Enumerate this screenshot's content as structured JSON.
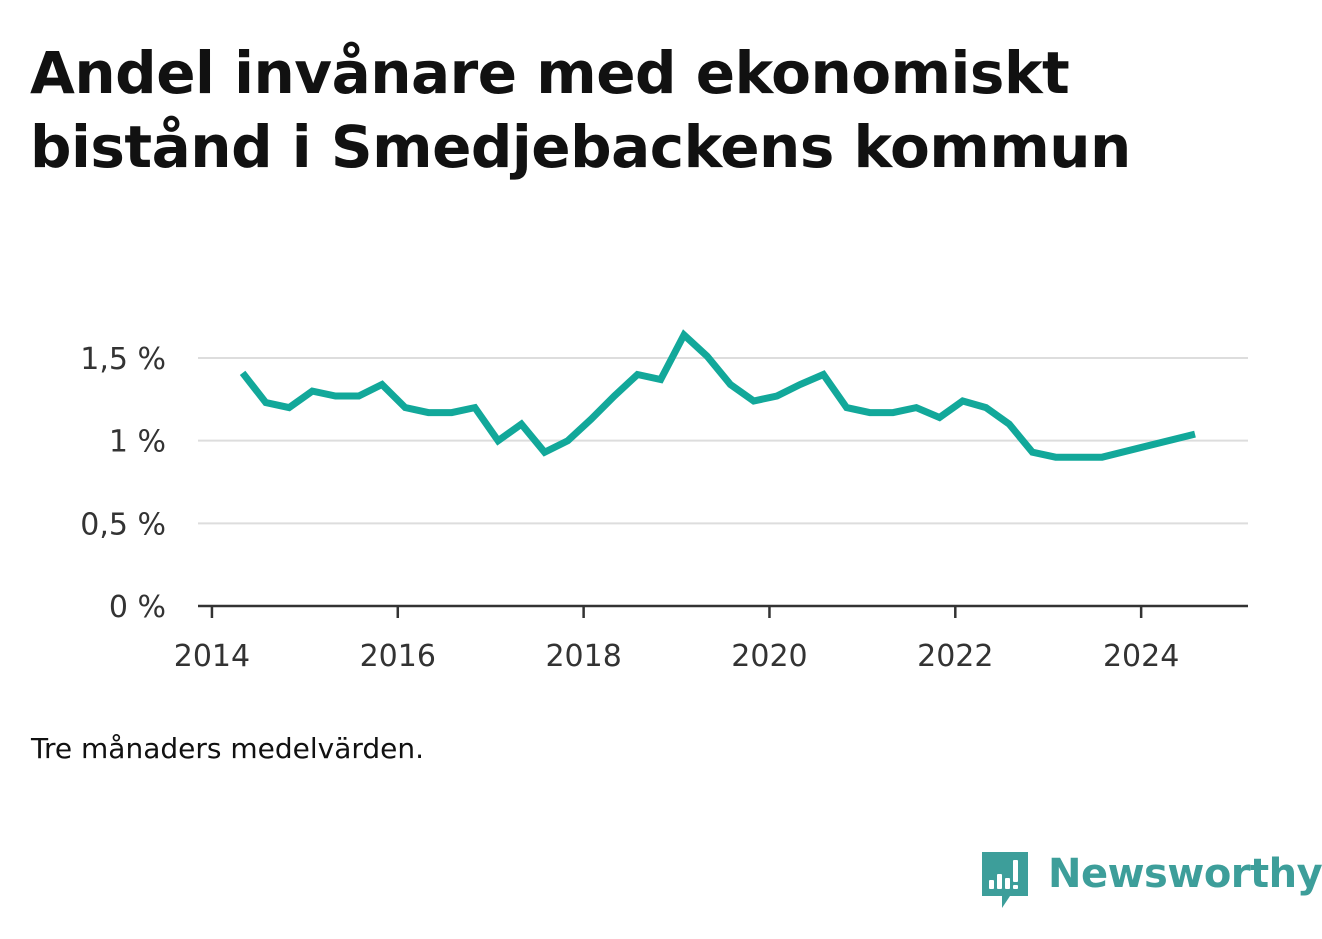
{
  "title": "Andel invånare med ekonomiskt bistånd i Smedjebackens kommun",
  "note": "Tre månaders medelvärden.",
  "brand": {
    "name": "Newsworthy",
    "icon": "newsworthy-logo-icon",
    "color": "#3d9e9a"
  },
  "colors": {
    "line": "#12a89a",
    "grid": "#dddddd",
    "axis": "#333333"
  },
  "chart_data": {
    "type": "line",
    "title": "Andel invånare med ekonomiskt bistånd i Smedjebackens kommun",
    "xlabel": "",
    "ylabel": "",
    "xlim": [
      2013.85,
      2025.15
    ],
    "ylim": [
      0,
      1.5
    ],
    "grid": true,
    "legend": "none",
    "x_ticks": [
      {
        "value": 2014,
        "label": "2014"
      },
      {
        "value": 2016,
        "label": "2016"
      },
      {
        "value": 2018,
        "label": "2018"
      },
      {
        "value": 2020,
        "label": "2020"
      },
      {
        "value": 2022,
        "label": "2022"
      },
      {
        "value": 2024,
        "label": "2024"
      }
    ],
    "y_ticks": [
      {
        "value": 0,
        "label": "0 %"
      },
      {
        "value": 0.5,
        "label": "0,5 %"
      },
      {
        "value": 1,
        "label": "1 %"
      },
      {
        "value": 1.5,
        "label": "1,5 %"
      }
    ],
    "series": [
      {
        "x": [
          2014.33,
          2014.58,
          2014.83,
          2015.08,
          2015.33,
          2015.58,
          2015.83,
          2016.08,
          2016.33,
          2016.58,
          2016.83,
          2017.08,
          2017.33,
          2017.58,
          2017.83,
          2018.08,
          2018.33,
          2018.58,
          2018.83,
          2019.08,
          2019.33,
          2019.58,
          2019.83,
          2020.08,
          2020.33,
          2020.58,
          2020.83,
          2021.08,
          2021.33,
          2021.58,
          2021.83,
          2022.08,
          2022.33,
          2022.58,
          2022.83,
          2023.08,
          2023.33,
          2023.58,
          2024.58
        ],
        "values": [
          1.41,
          1.23,
          1.2,
          1.3,
          1.27,
          1.27,
          1.34,
          1.2,
          1.17,
          1.17,
          1.2,
          1.0,
          1.1,
          0.93,
          1.0,
          1.13,
          1.27,
          1.4,
          1.37,
          1.64,
          1.51,
          1.34,
          1.24,
          1.27,
          1.34,
          1.4,
          1.2,
          1.17,
          1.17,
          1.2,
          1.14,
          1.24,
          1.2,
          1.1,
          0.93,
          0.9,
          0.9,
          0.9,
          1.04
        ]
      }
    ]
  }
}
